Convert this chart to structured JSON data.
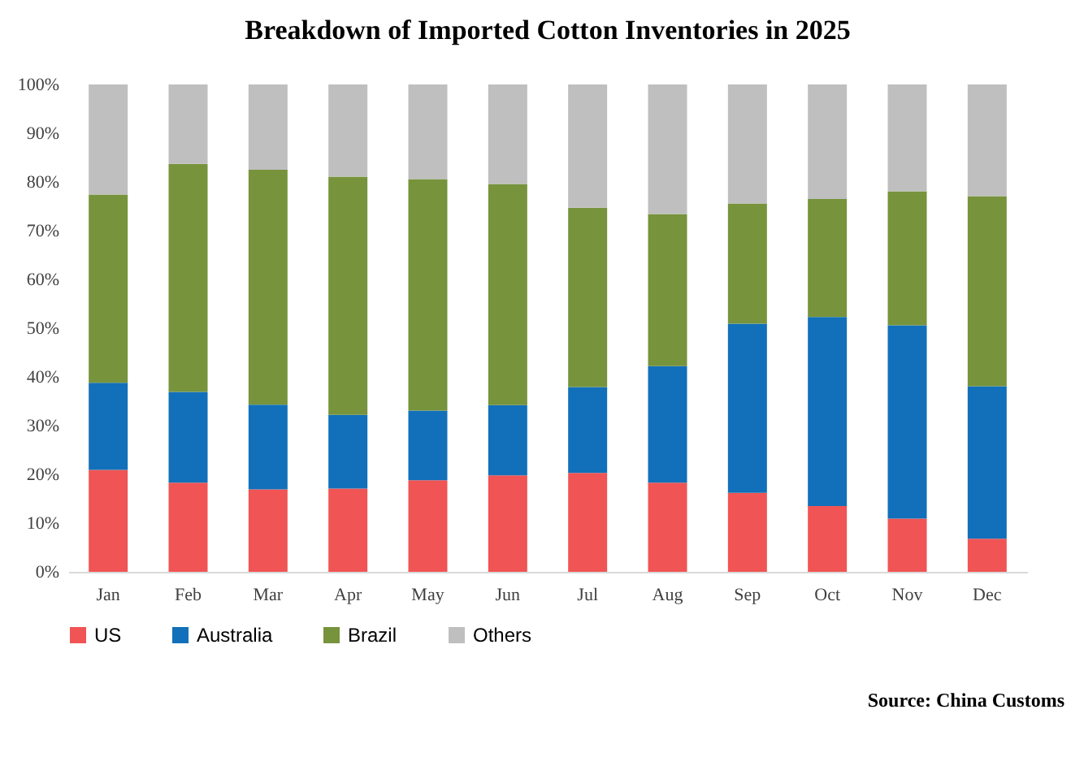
{
  "chart_data": {
    "type": "bar",
    "title": "Breakdown of Imported Cotton Inventories in 2025",
    "categories": [
      "Jan",
      "Feb",
      "Mar",
      "Apr",
      "May",
      "Jun",
      "Jul",
      "Aug",
      "Sep",
      "Oct",
      "Nov",
      "Dec"
    ],
    "stacked": true,
    "series": [
      {
        "name": "US",
        "color": "#f05454",
        "values": [
          20.9,
          18.3,
          16.9,
          17.1,
          18.8,
          19.8,
          20.3,
          18.3,
          16.2,
          13.5,
          10.9,
          6.8
        ]
      },
      {
        "name": "Australia",
        "color": "#1170b9",
        "values": [
          17.9,
          18.6,
          17.4,
          15.1,
          14.3,
          14.4,
          17.6,
          23.9,
          34.7,
          38.8,
          39.7,
          31.3
        ]
      },
      {
        "name": "Brazil",
        "color": "#77933c",
        "values": [
          38.6,
          46.8,
          48.2,
          48.9,
          47.5,
          45.4,
          36.8,
          31.2,
          24.7,
          24.2,
          27.5,
          39.0
        ]
      },
      {
        "name": "Others",
        "color": "#bfbfbf",
        "values": [
          22.6,
          16.3,
          17.5,
          18.9,
          19.4,
          20.4,
          25.3,
          26.6,
          24.4,
          23.5,
          21.9,
          22.9
        ]
      }
    ],
    "ylim": [
      0,
      100
    ],
    "yticks": [
      {
        "value": 0,
        "label": "0%"
      },
      {
        "value": 10,
        "label": "10%"
      },
      {
        "value": 20,
        "label": "20%"
      },
      {
        "value": 30,
        "label": "30%"
      },
      {
        "value": 40,
        "label": "40%"
      },
      {
        "value": 50,
        "label": "50%"
      },
      {
        "value": 60,
        "label": "60%"
      },
      {
        "value": 70,
        "label": "70%"
      },
      {
        "value": 80,
        "label": "80%"
      },
      {
        "value": 90,
        "label": "90%"
      },
      {
        "value": 100,
        "label": "100%"
      }
    ],
    "grid": false,
    "legend": "bottom",
    "annotations": [
      "Source: China Customs"
    ]
  }
}
